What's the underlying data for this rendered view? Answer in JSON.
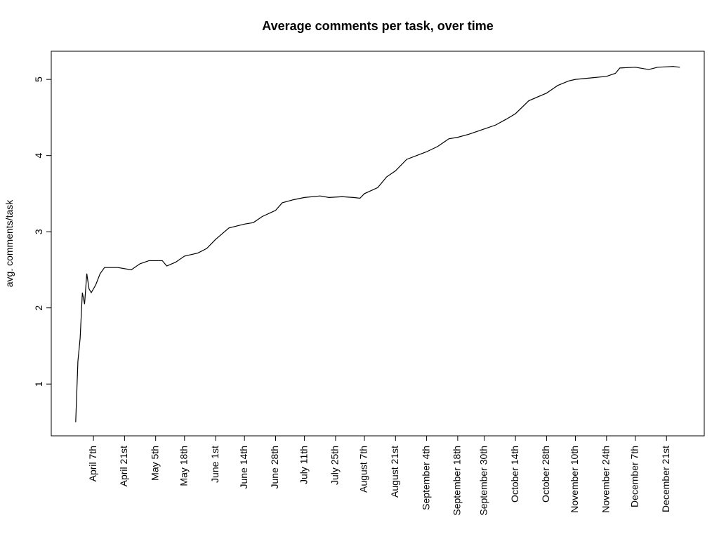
{
  "chart_data": {
    "type": "line",
    "title": "Average comments per task, over time",
    "ylabel": "avg. comments/task",
    "color": "#000000",
    "x": [
      "March 30th",
      "March 31st",
      "April 1st",
      "April 2nd",
      "April 3rd",
      "April 4th",
      "April 5th",
      "April 6th",
      "April 8th",
      "April 10th",
      "April 12th",
      "April 18th",
      "April 24th",
      "April 28th",
      "May 2nd",
      "May 8th",
      "May 10th",
      "May 14th",
      "May 18th",
      "May 24th",
      "May 28th",
      "June 1st",
      "June 7th",
      "June 14th",
      "June 18th",
      "June 22nd",
      "June 28th",
      "July 1st",
      "July 6th",
      "July 11th",
      "July 18th",
      "July 22nd",
      "July 28th",
      "August 2nd",
      "August 5th",
      "August 7th",
      "August 13th",
      "August 17th",
      "August 21st",
      "August 26th",
      "September 4th",
      "September 9th",
      "September 14th",
      "September 18th",
      "September 23rd",
      "September 30th",
      "October 5th",
      "October 10th",
      "October 14th",
      "October 20th",
      "October 28th",
      "November 2nd",
      "November 7th",
      "November 10th",
      "November 17th",
      "November 24th",
      "November 28th",
      "November 30th",
      "December 7th",
      "December 13th",
      "December 17th",
      "December 24th",
      "December 27th"
    ],
    "values": [
      0.5,
      1.3,
      1.6,
      2.2,
      2.05,
      2.45,
      2.25,
      2.2,
      2.3,
      2.45,
      2.53,
      2.53,
      2.5,
      2.58,
      2.62,
      2.62,
      2.55,
      2.6,
      2.68,
      2.72,
      2.78,
      2.9,
      3.05,
      3.1,
      3.12,
      3.2,
      3.28,
      3.38,
      3.42,
      3.45,
      3.47,
      3.45,
      3.46,
      3.45,
      3.44,
      3.5,
      3.58,
      3.72,
      3.8,
      3.95,
      4.05,
      4.12,
      4.22,
      4.24,
      4.28,
      4.35,
      4.4,
      4.48,
      4.55,
      4.72,
      4.82,
      4.92,
      4.98,
      5.0,
      5.02,
      5.04,
      5.08,
      5.15,
      5.16,
      5.13,
      5.16,
      5.17,
      5.16
    ],
    "xlim": [
      "March 19th",
      "January 7th"
    ],
    "xticks": [
      "April 7th",
      "April 21st",
      "May 5th",
      "May 18th",
      "June 1st",
      "June 14th",
      "June 28th",
      "July 11th",
      "July 25th",
      "August 7th",
      "August 21st",
      "September 4th",
      "September 18th",
      "September 30th",
      "October 14th",
      "October 28th",
      "November 10th",
      "November 24th",
      "December 7th",
      "December 21st"
    ],
    "ylim": [
      0.32,
      5.37
    ],
    "yticks": [
      1,
      2,
      3,
      4,
      5
    ]
  }
}
